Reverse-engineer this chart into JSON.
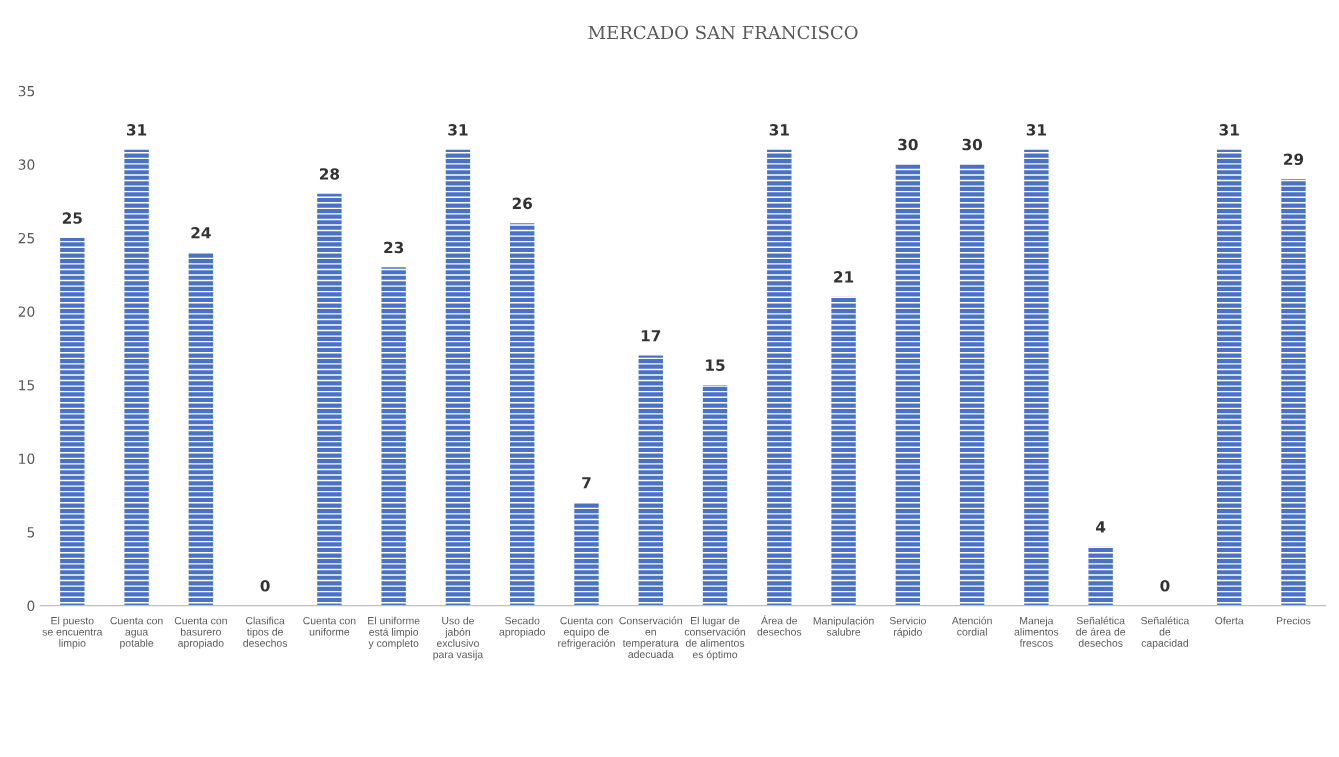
{
  "chart_data": {
    "type": "bar",
    "title": "MERCADO SAN FRANCISCO",
    "categories": [
      "El puesto\nse encuentra\nlimpio",
      "Cuenta con\nagua\npotable",
      "Cuenta con\nbasurero\napropiado",
      "Clasifica\ntipos de\ndesechos",
      "Cuenta con\nuniforme",
      "El uniforme\nestá limpio\ny completo",
      "Uso de\njabón\nexclusivo\npara vasija",
      "Secado\napropiado",
      "Cuenta con\nequipo de\nrefrigeración",
      "Conservación\nen\ntemperatura\nadecuada",
      "El lugar de\nconservación\nde alimentos\nes óptimo",
      "Área de\ndesechos",
      "Manipulación\nsalubre",
      "Servicio\nrápido",
      "Atención\ncordial",
      "Maneja\nalimentos\nfrescos",
      "Señalética\nde área de\ndesechos",
      "Señalética\nde\ncapacidad",
      "Oferta",
      "Precios"
    ],
    "values": [
      25,
      31,
      24,
      0,
      28,
      23,
      31,
      26,
      7,
      17,
      15,
      31,
      21,
      30,
      30,
      31,
      4,
      0,
      31,
      29
    ],
    "color": "#4a72c4",
    "ylim": [
      0,
      35
    ],
    "yticks": [
      0,
      5,
      10,
      15,
      20,
      25,
      30,
      35
    ],
    "data_labels": true,
    "grid": false,
    "legend": false
  }
}
